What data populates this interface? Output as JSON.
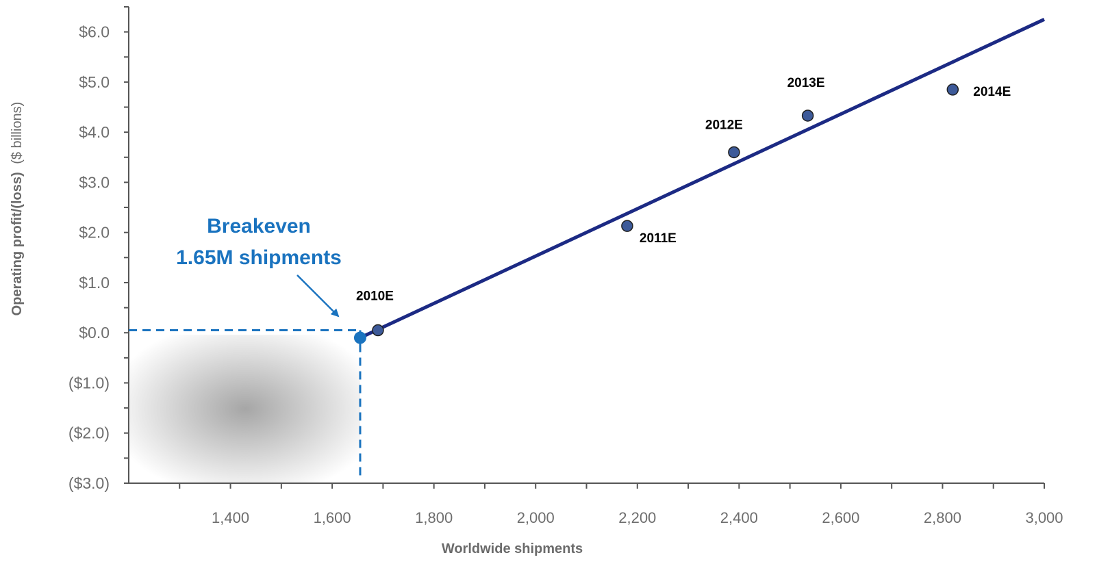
{
  "chart_data": {
    "type": "scatter",
    "xlabel": "Worldwide shipments",
    "ylabel": "Operating profit/(loss)",
    "ylabel_unit": "($ billions)",
    "xlim": [
      1200,
      3000
    ],
    "ylim": [
      -3.0,
      6.5
    ],
    "x_ticks": [
      1400,
      1600,
      1800,
      2000,
      2200,
      2400,
      2600,
      2800,
      3000
    ],
    "x_tick_labels": [
      "1,400",
      "1,600",
      "1,800",
      "2,000",
      "2,200",
      "2,400",
      "2,600",
      "2,800",
      "3,000"
    ],
    "y_ticks": [
      -3.0,
      -2.0,
      -1.0,
      0.0,
      1.0,
      2.0,
      3.0,
      4.0,
      5.0,
      6.0
    ],
    "y_tick_labels": [
      "($3.0)",
      "($2.0)",
      "($1.0)",
      "$0.0",
      "$1.0",
      "$2.0",
      "$3.0",
      "$4.0",
      "$5.0",
      "$6.0"
    ],
    "points": [
      {
        "label": "2010E",
        "x": 1690,
        "y": 0.05
      },
      {
        "label": "2011E",
        "x": 2180,
        "y": 2.13
      },
      {
        "label": "2012E",
        "x": 2390,
        "y": 3.6
      },
      {
        "label": "2013E",
        "x": 2535,
        "y": 4.33
      },
      {
        "label": "2014E",
        "x": 2820,
        "y": 4.85
      }
    ],
    "trend_line": {
      "from": [
        1655,
        -0.1
      ],
      "to": [
        3000,
        6.25
      ],
      "color": "#1c2a84"
    },
    "breakeven": {
      "x": 1655,
      "y": -0.1,
      "title": "Breakeven",
      "subtitle": "1.65M shipments",
      "color": "#1a73bf"
    },
    "point_color": "#3d5a99",
    "grid": false,
    "legend": "none"
  }
}
